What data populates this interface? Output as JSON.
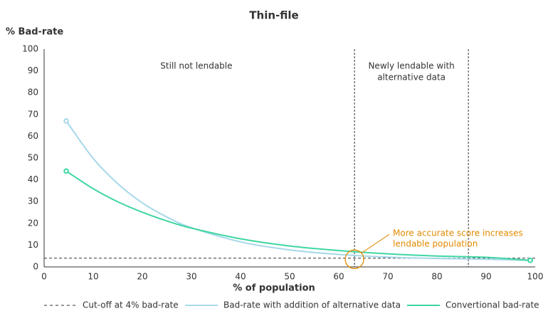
{
  "chart_data": {
    "type": "line",
    "title": "Thin-file",
    "y_label": "% Bad-rate",
    "x_label": "% of population",
    "x": [
      4.5,
      10,
      15,
      20,
      25,
      30,
      40,
      50,
      60,
      70,
      80,
      90,
      99
    ],
    "series": [
      {
        "name": "Bad-rate with addition of alternative data",
        "color": "#a6d8ea",
        "values": [
          67,
          49.8,
          38.2,
          29.4,
          22.9,
          18.0,
          11.5,
          7.8,
          5.7,
          4.5,
          3.9,
          3.5,
          3
        ]
      },
      {
        "name": "Convertional bad-rate",
        "color": "#3fd6a1",
        "values": [
          44,
          35.9,
          29.9,
          25.1,
          21.1,
          17.8,
          12.9,
          9.6,
          7.5,
          6.0,
          5.0,
          4.4,
          3
        ]
      }
    ],
    "cutoff": {
      "name": "Cut-off at 4% bad-rate",
      "value": 4
    },
    "vlines": [
      63.2,
      86.4
    ],
    "regions": [
      {
        "lines": [
          "Still not lendable"
        ],
        "x": 31
      },
      {
        "lines": [
          "Newly lendable with",
          "alternative data"
        ],
        "x": 74.8
      }
    ],
    "highlight": {
      "lines": [
        "More accurate score increases",
        "lendable population"
      ],
      "x": 63.2,
      "y": 3.5,
      "color": "#e08a00"
    },
    "xlim": [
      0,
      100
    ],
    "ylim": [
      0,
      100
    ],
    "xticks": [
      0,
      10,
      20,
      30,
      40,
      50,
      60,
      70,
      80,
      90,
      100
    ],
    "yticks": [
      0,
      10,
      20,
      30,
      40,
      50,
      60,
      70,
      80,
      90,
      100
    ]
  }
}
